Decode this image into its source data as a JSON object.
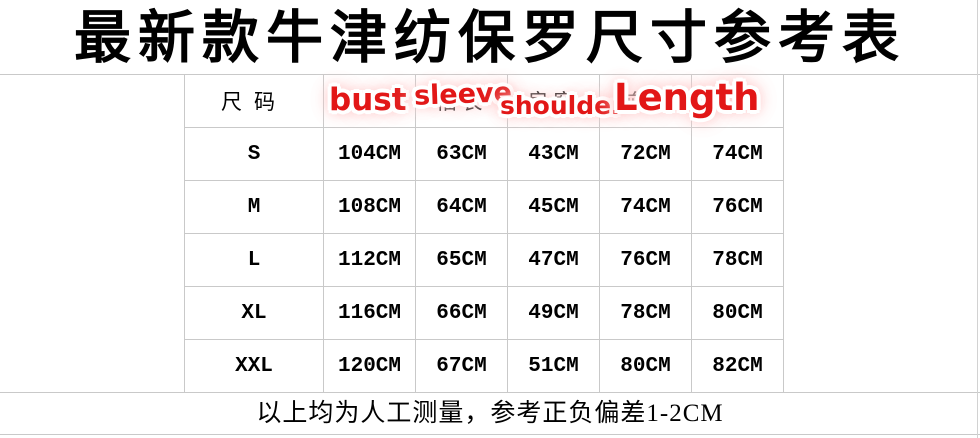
{
  "title": "最新款牛津纺保罗尺寸参考表",
  "table": {
    "size_col_header": "尺码",
    "columns_cn": [
      "胸围",
      "袖长",
      "肩宽",
      "前长",
      "后长"
    ],
    "rows": [
      {
        "size": "S",
        "values": [
          "104CM",
          "63CM",
          "43CM",
          "72CM",
          "74CM"
        ]
      },
      {
        "size": "M",
        "values": [
          "108CM",
          "64CM",
          "45CM",
          "74CM",
          "76CM"
        ]
      },
      {
        "size": "L",
        "values": [
          "112CM",
          "65CM",
          "47CM",
          "76CM",
          "78CM"
        ]
      },
      {
        "size": "XL",
        "values": [
          "116CM",
          "66CM",
          "49CM",
          "78CM",
          "80CM"
        ]
      },
      {
        "size": "XXL",
        "values": [
          "120CM",
          "67CM",
          "51CM",
          "80CM",
          "82CM"
        ]
      }
    ]
  },
  "overlays": {
    "bust": "bust",
    "sleeve": "sleeve",
    "shoulder": "shoulder",
    "length": "Length"
  },
  "footer": {
    "note": "以上均为人工测量，参考正负偏差1-2CM"
  },
  "colors": {
    "grid_line": "#c9c9c9",
    "annotation_red": "#e21717",
    "annotation_glow": "#ffc9c9",
    "text": "#000000",
    "background": "#ffffff"
  },
  "chart_data": {
    "type": "table",
    "title": "最新款牛津纺保罗尺寸参考表",
    "columns": [
      "尺码",
      "胸围 (bust)",
      "袖长 (sleeve)",
      "肩宽 (shoulder)",
      "前长",
      "后长 (Length)"
    ],
    "rows": [
      [
        "S",
        "104CM",
        "63CM",
        "43CM",
        "72CM",
        "74CM"
      ],
      [
        "M",
        "108CM",
        "64CM",
        "45CM",
        "74CM",
        "76CM"
      ],
      [
        "L",
        "112CM",
        "65CM",
        "47CM",
        "76CM",
        "78CM"
      ],
      [
        "XL",
        "116CM",
        "66CM",
        "49CM",
        "78CM",
        "80CM"
      ],
      [
        "XXL",
        "120CM",
        "67CM",
        "51CM",
        "80CM",
        "82CM"
      ]
    ],
    "unit": "CM",
    "note": "以上均为人工测量，参考正负偏差1-2CM"
  }
}
